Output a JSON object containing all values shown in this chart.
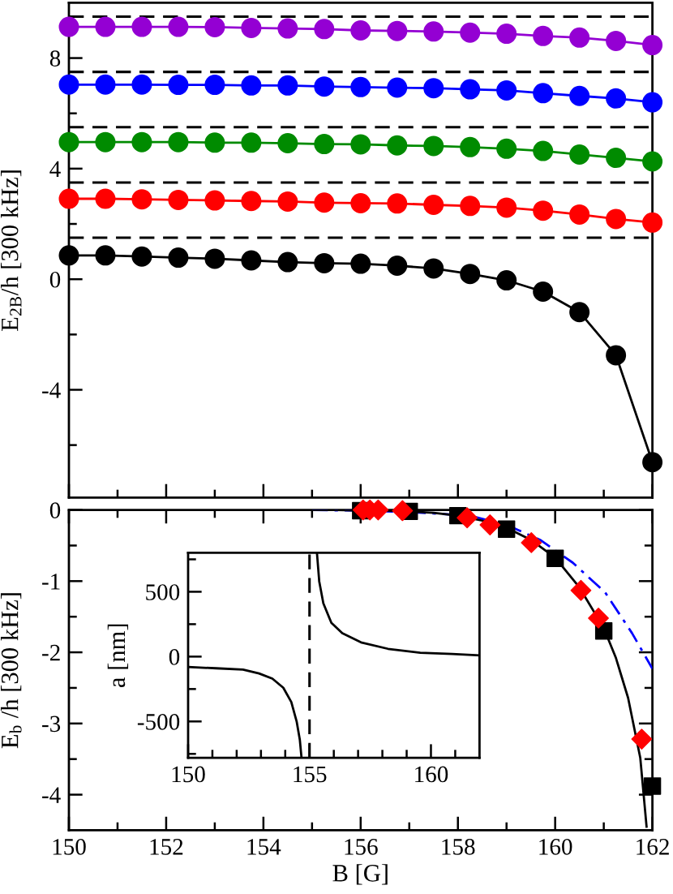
{
  "chart_data": [
    {
      "type": "line",
      "x": [
        150,
        150.75,
        151.5,
        152.25,
        153,
        153.75,
        154.5,
        155.25,
        156,
        156.75,
        157.5,
        158.25,
        159,
        159.75,
        160.5,
        161.25,
        162
      ],
      "ylabel": "E$_{2B}$/h [300 kHz]",
      "xlim": [
        150,
        162
      ],
      "ylim": [
        -7.9,
        10
      ],
      "xticks": [
        150,
        {
          "value": 151,
          "label": null
        },
        152,
        {
          "value": 153,
          "label": null
        },
        154,
        {
          "value": 155,
          "label": null
        },
        156,
        {
          "value": 157,
          "label": null
        },
        158,
        {
          "value": 159,
          "label": null
        },
        160,
        {
          "value": 161,
          "label": null
        },
        162
      ],
      "yticks": [
        {
          "value": -6,
          "label": null
        },
        -4,
        {
          "value": -2,
          "label": null
        },
        0,
        {
          "value": 2,
          "label": null
        },
        4,
        {
          "value": 6,
          "label": null
        },
        8
      ],
      "tick_labels": "y",
      "ref_lines": [
        {
          "axis": "y",
          "value": 1.5,
          "color": "#000000",
          "line_style": "dashed"
        },
        {
          "axis": "y",
          "value": 3.5,
          "color": "#000000",
          "line_style": "dashed"
        },
        {
          "axis": "y",
          "value": 5.5,
          "color": "#000000",
          "line_style": "dashed"
        },
        {
          "axis": "y",
          "value": 7.5,
          "color": "#000000",
          "line_style": "dashed"
        },
        {
          "axis": "y",
          "value": 9.5,
          "color": "#000000",
          "line_style": "dashed"
        }
      ],
      "series": [
        {
          "color": "#000000",
          "marker": "circle",
          "values": [
            0.86,
            0.86,
            0.82,
            0.78,
            0.74,
            0.68,
            0.62,
            0.58,
            0.56,
            0.49,
            0.39,
            0.19,
            -0.04,
            -0.45,
            -1.19,
            -2.75,
            -6.62
          ]
        },
        {
          "color": "#ff0000",
          "marker": "circle",
          "values": [
            2.91,
            2.91,
            2.89,
            2.87,
            2.85,
            2.83,
            2.81,
            2.77,
            2.75,
            2.74,
            2.69,
            2.65,
            2.59,
            2.48,
            2.34,
            2.18,
            2.05
          ]
        },
        {
          "color": "#008b00",
          "marker": "circle",
          "values": [
            4.96,
            4.96,
            4.96,
            4.96,
            4.94,
            4.94,
            4.92,
            4.89,
            4.88,
            4.84,
            4.82,
            4.78,
            4.72,
            4.64,
            4.51,
            4.39,
            4.26
          ]
        },
        {
          "color": "#0000ff",
          "marker": "circle",
          "values": [
            7.04,
            7.04,
            7.04,
            7.03,
            7.03,
            7.01,
            7.01,
            6.97,
            6.95,
            6.93,
            6.91,
            6.87,
            6.83,
            6.73,
            6.63,
            6.54,
            6.4
          ]
        },
        {
          "color": "#9400d3",
          "marker": "circle",
          "values": [
            9.13,
            9.13,
            9.13,
            9.13,
            9.12,
            9.09,
            9.07,
            9.05,
            9.0,
            8.98,
            8.96,
            8.92,
            8.88,
            8.8,
            8.74,
            8.62,
            8.47
          ]
        }
      ]
    },
    {
      "type": "scatter",
      "xlabel": "B [G]",
      "ylabel": "E$_{b}$ /h [300 kHz]",
      "xlim": [
        150,
        162
      ],
      "ylim": [
        -4.5,
        0
      ],
      "xticks": [
        150,
        {
          "value": 151,
          "label": null
        },
        152,
        {
          "value": 153,
          "label": null
        },
        154,
        {
          "value": 155,
          "label": null
        },
        156,
        {
          "value": 157,
          "label": null
        },
        158,
        {
          "value": 159,
          "label": null
        },
        160,
        {
          "value": 161,
          "label": null
        },
        162
      ],
      "yticks": [
        0,
        {
          "value": -0.5,
          "label": null
        },
        -1,
        {
          "value": -1.5,
          "label": null
        },
        -2,
        {
          "value": -2.5,
          "label": null
        },
        -3,
        {
          "value": -3.5,
          "label": null
        },
        -4
      ],
      "series": [
        {
          "type": "line",
          "color": "#0000ff",
          "marker": "none",
          "line_style": "dashdot",
          "x": [
            155.0,
            156,
            157,
            157.5,
            158,
            158.36,
            159.03,
            159.69,
            160.36,
            161.03,
            161.58,
            162
          ],
          "values": [
            0,
            -0.01,
            -0.03,
            -0.05,
            -0.07,
            -0.1,
            -0.22,
            -0.42,
            -0.74,
            -1.16,
            -1.73,
            -2.23
          ]
        },
        {
          "type": "line",
          "color": "#000000",
          "marker": "none",
          "line_style": "solid",
          "x": [
            155.0,
            155.5,
            156,
            156.5,
            157,
            157.5,
            158,
            158.5,
            159,
            159.5,
            160,
            160.5,
            161,
            161.25,
            161.5,
            161.75,
            161.88
          ],
          "values": [
            0,
            0,
            -0.01,
            -0.01,
            -0.02,
            -0.04,
            -0.08,
            -0.15,
            -0.25,
            -0.42,
            -0.67,
            -1.09,
            -1.66,
            -2.08,
            -2.64,
            -3.48,
            -4.45
          ]
        },
        {
          "type": "scatter",
          "color": "#000000",
          "marker": "square",
          "x": [
            156,
            157,
            158,
            159,
            160,
            161,
            162
          ],
          "values": [
            -0.01,
            -0.02,
            -0.08,
            -0.27,
            -0.68,
            -1.7,
            -3.88
          ]
        },
        {
          "type": "scatter",
          "color": "#ff0000",
          "marker": "diamond",
          "x": [
            156.05,
            156.19,
            156.36,
            156.86,
            158.19,
            158.66,
            159.51,
            160.53,
            160.89,
            161.78
          ],
          "values": [
            0,
            0,
            0,
            -0.01,
            -0.11,
            -0.21,
            -0.46,
            -1.13,
            -1.52,
            -3.22
          ]
        }
      ]
    },
    {
      "type": "line",
      "ylabel": "a [nm]",
      "xlim": [
        150,
        162
      ],
      "ylim": [
        -780,
        800
      ],
      "xticks": [
        150,
        {
          "value": 151,
          "label": null
        },
        {
          "value": 152,
          "label": null
        },
        {
          "value": 153,
          "label": null
        },
        {
          "value": 154,
          "label": null
        },
        155,
        {
          "value": 156,
          "label": null
        },
        {
          "value": 157,
          "label": null
        },
        {
          "value": 158,
          "label": null
        },
        {
          "value": 159,
          "label": null
        },
        160,
        {
          "value": 161,
          "label": null
        }
      ],
      "yticks": [
        {
          "value": -750,
          "label": null
        },
        -500,
        {
          "value": -250,
          "label": null
        },
        0,
        {
          "value": 250,
          "label": null
        },
        500,
        {
          "value": 750,
          "label": null
        }
      ],
      "ref_lines": [
        {
          "axis": "x",
          "value": 155,
          "color": "#000000",
          "line_style": "dashed"
        }
      ],
      "series": [
        {
          "color": "#000000",
          "marker": "none",
          "x": [
            150,
            151.15,
            152.26,
            152.92,
            153.47,
            153.92,
            154.25,
            154.47,
            154.6,
            154.67
          ],
          "values": [
            -80,
            -90,
            -100,
            -130,
            -170,
            -240,
            -350,
            -500,
            -640,
            -780
          ]
        },
        {
          "color": "#000000",
          "marker": "none",
          "x": [
            155.31,
            155.4,
            155.57,
            155.9,
            156.35,
            157.12,
            158.23,
            159.56,
            160.88,
            162
          ],
          "values": [
            790,
            580,
            410,
            260,
            180,
            110,
            60,
            30,
            20,
            10
          ]
        }
      ]
    }
  ]
}
